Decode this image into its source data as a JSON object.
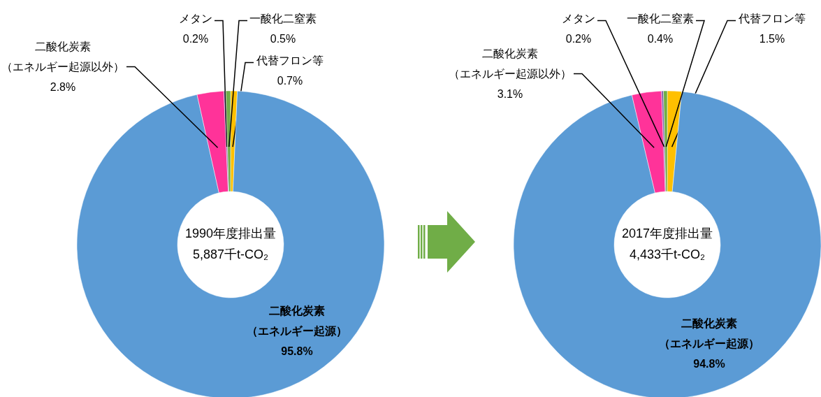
{
  "chart_data": [
    {
      "type": "donut",
      "categories": [
        "代替フロン等",
        "二酸化炭素（エネルギー起源）",
        "二酸化炭素（エネルギー起源以外）",
        "メタン",
        "一酸化二窒素"
      ],
      "values": [
        0.7,
        95.8,
        2.8,
        0.2,
        0.5
      ],
      "value_labels": [
        "0.7%",
        "95.8%",
        "2.8%",
        "0.2%",
        "0.5%"
      ],
      "colors": [
        "#ffc000",
        "#5b9bd5",
        "#ff3399",
        "#7b5ea7",
        "#70ad47"
      ],
      "annotations": [
        "1990年度排出量",
        "5,887千t-CO₂"
      ]
    },
    {
      "type": "donut",
      "categories": [
        "代替フロン等",
        "二酸化炭素（エネルギー起源）",
        "二酸化炭素（エネルギー起源以外）",
        "メタン",
        "一酸化二窒素"
      ],
      "values": [
        1.5,
        94.8,
        3.1,
        0.2,
        0.4
      ],
      "value_labels": [
        "1.5%",
        "94.8%",
        "3.1%",
        "0.2%",
        "0.4%"
      ],
      "colors": [
        "#ffc000",
        "#5b9bd5",
        "#ff3399",
        "#7b5ea7",
        "#70ad47"
      ],
      "annotations": [
        "2017年度排出量",
        "4,433千t-CO₂"
      ]
    }
  ]
}
